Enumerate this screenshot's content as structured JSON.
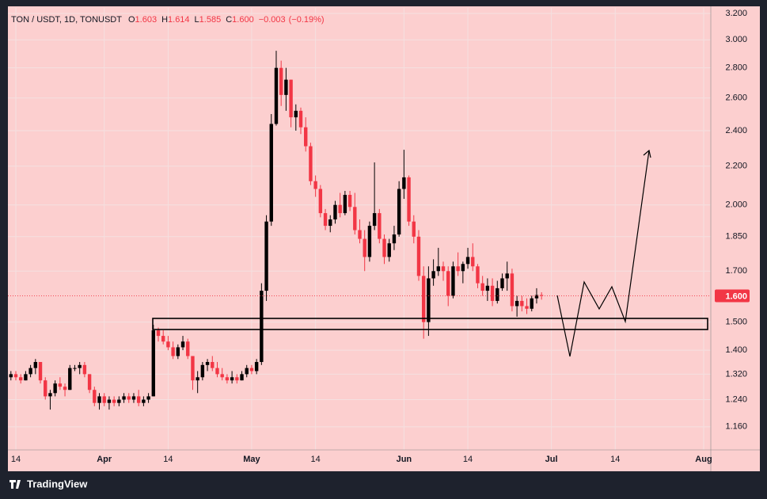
{
  "chart_data": {
    "type": "candlestick",
    "header": {
      "symbol": "TON / USDT, 1D, TONUSDT",
      "labels": [
        "O",
        "H",
        "L",
        "C"
      ],
      "values": [
        1.603,
        1.614,
        1.585,
        {
          "value": 1.6,
          "label": "1.600"
        }
      ],
      "change": {
        "value": -0.003,
        "label": "−0.003"
      },
      "change_pct": {
        "value": -0.19,
        "label": "(−0.19%)"
      }
    },
    "x": [
      12,
      13,
      14,
      15,
      16,
      17,
      18,
      19,
      20,
      21,
      22,
      23,
      24,
      25,
      26,
      27,
      28,
      29,
      30,
      31,
      32,
      33,
      34,
      35,
      36,
      37,
      38,
      39,
      40,
      41,
      42,
      43,
      44,
      45,
      46,
      47,
      48,
      49,
      50,
      51,
      52,
      53,
      54,
      55,
      56,
      57,
      58,
      59,
      60,
      61,
      62,
      63,
      64,
      65,
      66,
      67,
      68,
      69,
      70,
      71,
      72,
      73,
      74,
      75,
      76,
      77,
      78,
      79,
      80,
      81,
      82,
      83,
      84,
      85,
      86,
      87,
      88,
      89,
      90,
      91,
      92,
      93,
      94,
      95,
      96,
      97,
      98,
      99,
      100,
      101,
      102,
      103,
      104,
      105,
      106,
      107,
      108,
      109,
      110,
      111,
      112,
      113,
      114,
      115,
      116,
      117,
      118,
      119,
      120
    ],
    "open": [
      1.31,
      1.32,
      1.31,
      1.3,
      1.32,
      1.34,
      1.36,
      1.3,
      1.25,
      1.26,
      1.29,
      1.28,
      1.27,
      1.34,
      1.34,
      1.35,
      1.32,
      1.27,
      1.23,
      1.25,
      1.23,
      1.24,
      1.23,
      1.24,
      1.25,
      1.24,
      1.25,
      1.23,
      1.24,
      1.25,
      1.47,
      1.45,
      1.43,
      1.41,
      1.38,
      1.41,
      1.43,
      1.38,
      1.3,
      1.31,
      1.35,
      1.36,
      1.34,
      1.32,
      1.31,
      1.3,
      1.31,
      1.3,
      1.32,
      1.34,
      1.33,
      1.36,
      1.62,
      1.92,
      2.44,
      2.8,
      2.62,
      2.72,
      2.48,
      2.52,
      2.42,
      2.31,
      2.12,
      2.08,
      1.96,
      1.9,
      1.93,
      2.0,
      1.96,
      2.05,
      1.99,
      1.88,
      1.84,
      1.76,
      1.9,
      1.96,
      1.84,
      1.76,
      1.82,
      1.86,
      2.08,
      2.14,
      1.92,
      1.85,
      1.68,
      1.5,
      1.67,
      1.7,
      1.72,
      1.7,
      1.6,
      1.72,
      1.7,
      1.73,
      1.76,
      1.72,
      1.65,
      1.62,
      1.64,
      1.58,
      1.63,
      1.67,
      1.69,
      1.56,
      1.58,
      1.56,
      1.55,
      1.59,
      1.603
    ],
    "high": [
      1.33,
      1.33,
      1.32,
      1.33,
      1.35,
      1.37,
      1.36,
      1.31,
      1.27,
      1.3,
      1.31,
      1.29,
      1.35,
      1.35,
      1.36,
      1.36,
      1.32,
      1.28,
      1.26,
      1.26,
      1.25,
      1.25,
      1.25,
      1.26,
      1.26,
      1.26,
      1.27,
      1.25,
      1.26,
      1.49,
      1.48,
      1.47,
      1.45,
      1.43,
      1.42,
      1.45,
      1.44,
      1.38,
      1.33,
      1.36,
      1.37,
      1.38,
      1.36,
      1.34,
      1.32,
      1.33,
      1.32,
      1.33,
      1.35,
      1.35,
      1.37,
      1.65,
      1.95,
      2.5,
      2.92,
      2.85,
      2.8,
      2.72,
      2.56,
      2.54,
      2.48,
      2.33,
      2.15,
      2.1,
      1.98,
      1.95,
      2.02,
      2.06,
      2.07,
      2.07,
      2.06,
      1.93,
      1.88,
      1.92,
      2.22,
      1.98,
      1.86,
      1.84,
      1.9,
      2.12,
      2.29,
      2.15,
      1.95,
      1.88,
      1.72,
      1.72,
      1.75,
      1.8,
      1.74,
      1.72,
      1.74,
      1.78,
      1.74,
      1.8,
      1.82,
      1.73,
      1.68,
      1.67,
      1.67,
      1.66,
      1.69,
      1.74,
      1.71,
      1.6,
      1.6,
      1.59,
      1.6,
      1.63,
      1.614
    ],
    "low": [
      1.3,
      1.3,
      1.29,
      1.3,
      1.31,
      1.32,
      1.29,
      1.24,
      1.21,
      1.25,
      1.27,
      1.25,
      1.27,
      1.33,
      1.32,
      1.31,
      1.26,
      1.22,
      1.21,
      1.22,
      1.21,
      1.22,
      1.22,
      1.23,
      1.23,
      1.23,
      1.22,
      1.22,
      1.23,
      1.25,
      1.43,
      1.42,
      1.4,
      1.37,
      1.37,
      1.4,
      1.37,
      1.27,
      1.26,
      1.3,
      1.33,
      1.33,
      1.31,
      1.3,
      1.29,
      1.29,
      1.29,
      1.3,
      1.31,
      1.32,
      1.32,
      1.35,
      1.58,
      1.9,
      2.43,
      2.55,
      2.52,
      2.42,
      2.4,
      2.38,
      2.28,
      2.1,
      2.04,
      1.94,
      1.88,
      1.87,
      1.91,
      1.94,
      1.95,
      1.97,
      1.86,
      1.82,
      1.7,
      1.74,
      1.88,
      1.82,
      1.73,
      1.74,
      1.79,
      1.85,
      2.03,
      1.9,
      1.82,
      1.66,
      1.44,
      1.45,
      1.64,
      1.68,
      1.66,
      1.56,
      1.59,
      1.68,
      1.65,
      1.71,
      1.7,
      1.63,
      1.6,
      1.58,
      1.56,
      1.57,
      1.62,
      1.62,
      1.54,
      1.52,
      1.54,
      1.53,
      1.54,
      1.57,
      1.585
    ],
    "close": [
      1.32,
      1.31,
      1.3,
      1.32,
      1.34,
      1.36,
      1.3,
      1.25,
      1.26,
      1.29,
      1.28,
      1.27,
      1.34,
      1.34,
      1.35,
      1.32,
      1.27,
      1.23,
      1.25,
      1.23,
      1.24,
      1.23,
      1.24,
      1.25,
      1.24,
      1.25,
      1.23,
      1.24,
      1.25,
      1.47,
      1.45,
      1.43,
      1.41,
      1.38,
      1.41,
      1.43,
      1.38,
      1.3,
      1.31,
      1.35,
      1.36,
      1.34,
      1.32,
      1.31,
      1.3,
      1.31,
      1.3,
      1.32,
      1.34,
      1.33,
      1.36,
      1.62,
      1.92,
      2.44,
      2.8,
      2.62,
      2.72,
      2.48,
      2.52,
      2.42,
      2.31,
      2.12,
      2.08,
      1.96,
      1.9,
      1.93,
      2.0,
      1.96,
      2.05,
      1.99,
      1.88,
      1.84,
      1.76,
      1.9,
      1.96,
      1.84,
      1.76,
      1.82,
      1.86,
      2.08,
      2.14,
      1.92,
      1.85,
      1.68,
      1.5,
      1.67,
      1.7,
      1.72,
      1.7,
      1.6,
      1.72,
      1.7,
      1.73,
      1.76,
      1.72,
      1.65,
      1.62,
      1.64,
      1.58,
      1.63,
      1.67,
      1.69,
      1.56,
      1.58,
      1.56,
      1.55,
      1.59,
      1.603,
      1.6
    ],
    "up_color": "#000000",
    "down_color": "#f23645",
    "log_scale": true,
    "grid": true,
    "xlim": [
      11.39,
      154.45
    ],
    "ylim": [
      1.096,
      3.244
    ],
    "xticks": [
      {
        "value": 13,
        "label": "14"
      },
      {
        "value": 31,
        "label": "Apr"
      },
      {
        "value": 44,
        "label": "14"
      },
      {
        "value": 61,
        "label": "May"
      },
      {
        "value": 74,
        "label": "14"
      },
      {
        "value": 92,
        "label": "Jun"
      },
      {
        "value": 105,
        "label": "14"
      },
      {
        "value": 122,
        "label": "Jul"
      },
      {
        "value": 135,
        "label": "14"
      },
      {
        "value": 153,
        "label": "Aug"
      }
    ],
    "yticks": [
      {
        "value": 1.16,
        "label": "1.160"
      },
      {
        "value": 1.24,
        "label": "1.240"
      },
      {
        "value": 1.32,
        "label": "1.320"
      },
      {
        "value": 1.4,
        "label": "1.400"
      },
      {
        "value": 1.5,
        "label": "1.500"
      },
      {
        "value": 1.7,
        "label": "1.700"
      },
      {
        "value": 1.85,
        "label": "1.850"
      },
      {
        "value": 2,
        "label": "2.000"
      },
      {
        "value": 2.2,
        "label": "2.200"
      },
      {
        "value": 2.4,
        "label": "2.400"
      },
      {
        "value": 2.6,
        "label": "2.600"
      },
      {
        "value": 2.8,
        "label": "2.800"
      },
      {
        "value": 3,
        "label": "3.000"
      },
      {
        "value": 3.2,
        "label": "3.200"
      }
    ],
    "last_price": {
      "value": 1.6,
      "label": "1.600"
    },
    "brand": "TradingView"
  }
}
